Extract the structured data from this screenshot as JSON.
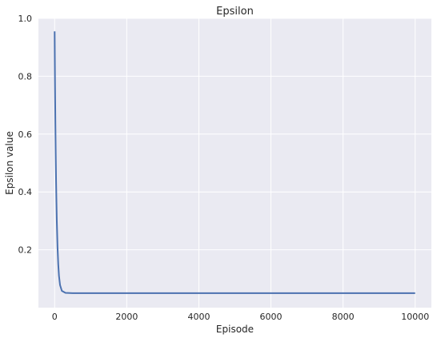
{
  "chart_data": {
    "type": "line",
    "title": "Epsilon",
    "xlabel": "Episode",
    "ylabel": "Epsilon value",
    "xlim": [
      -450,
      10450
    ],
    "ylim": [
      0.0,
      1.0
    ],
    "xticks": [
      0,
      2000,
      4000,
      6000,
      8000,
      10000
    ],
    "xtick_labels": [
      "0",
      "2000",
      "4000",
      "6000",
      "8000",
      "10000"
    ],
    "yticks": [
      0.2,
      0.4,
      0.6,
      0.8,
      1.0
    ],
    "ytick_labels": [
      "0.2",
      "0.4",
      "0.6",
      "0.8",
      "1.0"
    ],
    "grid": true,
    "colors": {
      "background": "#eaeaf2",
      "grid": "#ffffff",
      "line": "#4c72b0"
    },
    "series": [
      {
        "x": [
          0,
          5,
          10,
          20,
          30,
          40,
          50,
          60,
          80,
          100,
          120,
          150,
          200,
          300,
          500,
          1000,
          2000,
          4000,
          6000,
          8000,
          10000
        ],
        "values": [
          0.955,
          0.86,
          0.78,
          0.64,
          0.53,
          0.435,
          0.365,
          0.3,
          0.21,
          0.15,
          0.11,
          0.078,
          0.058,
          0.051,
          0.05,
          0.05,
          0.05,
          0.05,
          0.05,
          0.05,
          0.05
        ]
      }
    ]
  }
}
